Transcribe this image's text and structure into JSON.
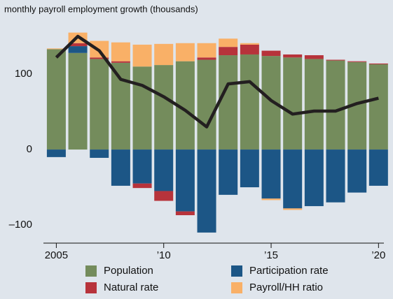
{
  "chart_data": {
    "type": "bar",
    "title": "monthly payroll employment growth (thousands)",
    "x": [
      2005,
      2006,
      2007,
      2008,
      2009,
      2010,
      2011,
      2012,
      2013,
      2014,
      2015,
      2016,
      2017,
      2018,
      2019,
      2020
    ],
    "series": [
      {
        "name": "Population",
        "color": "#748c5c",
        "values": [
          133,
          128,
          120,
          115,
          110,
          112,
          117,
          119,
          125,
          126,
          124,
          122,
          120,
          118,
          116,
          113
        ]
      },
      {
        "name": "Participation rate",
        "color": "#1c5686",
        "values": [
          -10,
          9,
          -11,
          -48,
          -45,
          -55,
          -82,
          -110,
          -60,
          -50,
          -65,
          -78,
          -75,
          -70,
          -57,
          -48
        ]
      },
      {
        "name": "Natural rate",
        "color": "#b7333b",
        "values": [
          0,
          4,
          2,
          2,
          -6,
          -13,
          -5,
          3,
          11,
          13,
          7,
          4,
          5,
          1,
          1,
          1
        ]
      },
      {
        "name": "Payroll/HH ratio",
        "color": "#f9b067",
        "values": [
          1,
          14,
          22,
          25,
          29,
          28,
          24,
          19,
          11,
          2,
          -2,
          -2,
          0,
          0,
          0,
          0
        ]
      }
    ],
    "line_values": [
      122,
      150,
      131,
      93,
      85,
      70,
      52,
      30,
      87,
      90,
      65,
      47,
      51,
      51,
      61,
      68
    ],
    "line_color": "#231f20",
    "xlim": [
      2004.4,
      2020.25
    ],
    "xticks": [
      {
        "value": 2005,
        "label": "2005"
      },
      {
        "value": 2010,
        "label": "’10"
      },
      {
        "value": 2015,
        "label": "’15"
      },
      {
        "value": 2020,
        "label": "’20"
      }
    ],
    "ylim": [
      -124,
      163
    ],
    "yticks": [
      {
        "value": -100,
        "label": "–100"
      },
      0,
      100
    ]
  }
}
